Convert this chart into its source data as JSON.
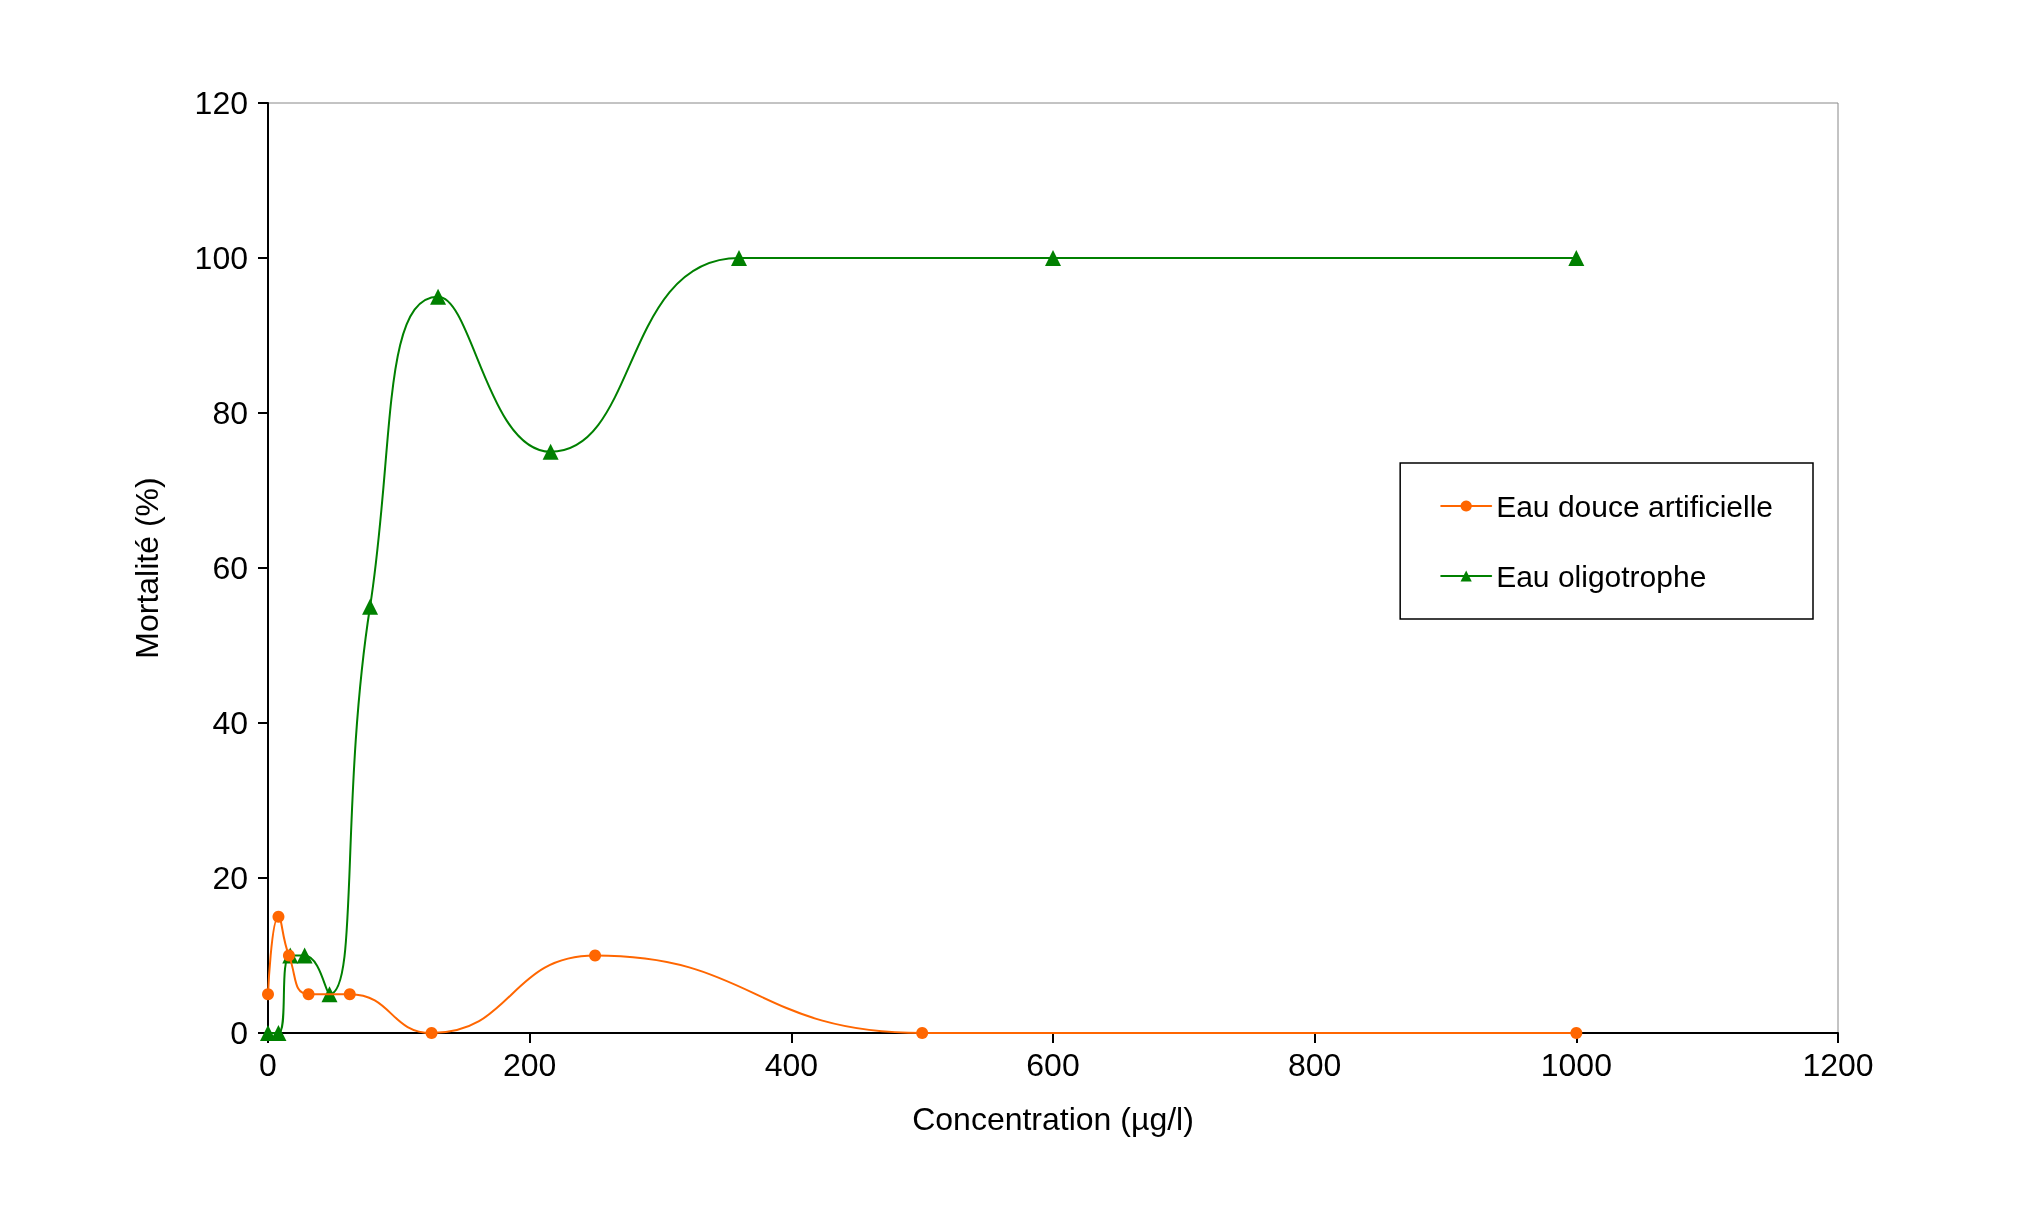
{
  "chart_data": {
    "type": "line",
    "xlabel": "Concentration (µg/l)",
    "ylabel": "Mortalité (%)",
    "xlim": [
      0,
      1200
    ],
    "xticks": [
      0,
      200,
      400,
      600,
      800,
      1000,
      1200
    ],
    "ylim": [
      0,
      120
    ],
    "yticks": [
      0,
      20,
      40,
      60,
      80,
      100,
      120
    ],
    "grid": false,
    "legend": "right",
    "line_style": "solid",
    "series": [
      {
        "name": "Eau douce artificielle",
        "color": "#ff6600",
        "marker": "circle",
        "x": [
          0,
          8,
          16,
          31,
          62.5,
          125,
          250,
          500,
          1000
        ],
        "values": [
          5,
          15,
          10,
          5,
          5,
          0,
          10,
          0,
          0
        ]
      },
      {
        "name": "Eau oligotrophe",
        "color": "#008000",
        "marker": "triangle",
        "x": [
          0,
          8,
          17,
          28,
          47,
          78,
          130,
          216,
          360,
          600,
          1000
        ],
        "values": [
          0,
          0,
          10,
          10,
          5,
          55,
          95,
          75,
          100,
          100,
          100
        ]
      }
    ]
  }
}
